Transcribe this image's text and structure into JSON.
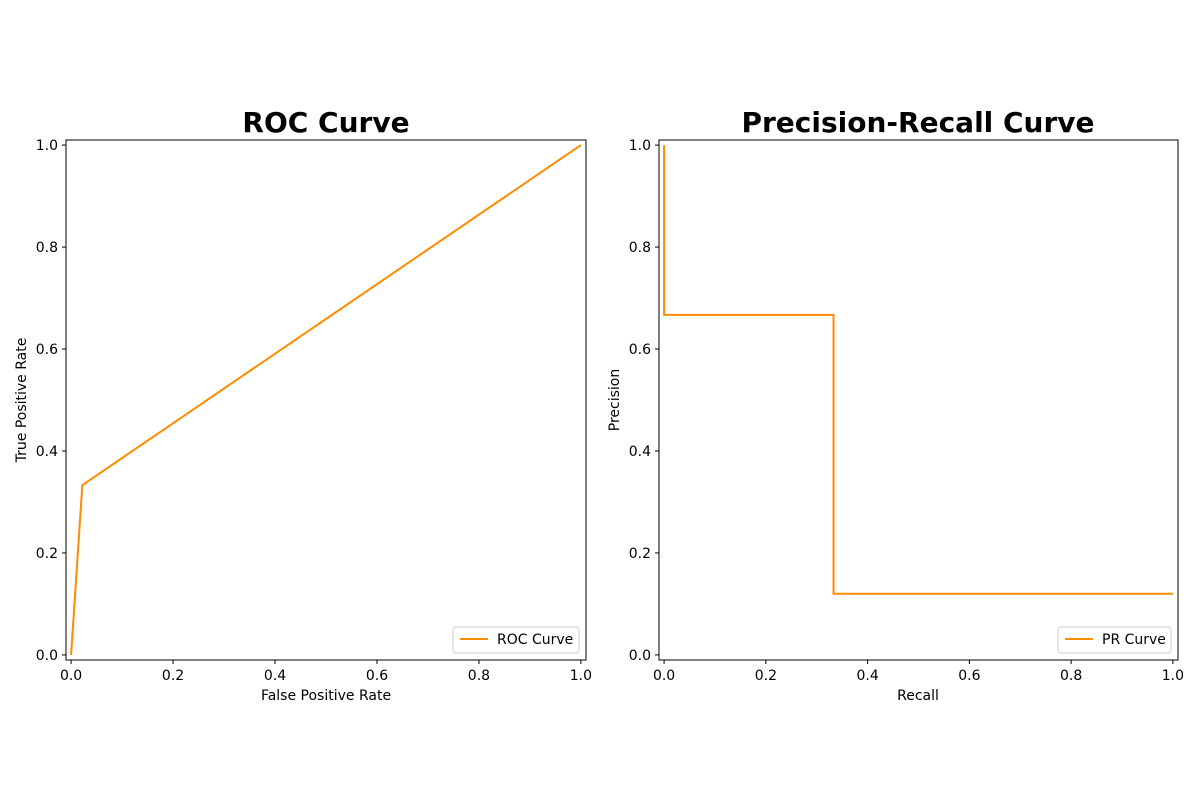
{
  "colors": {
    "line": "#ff8c00",
    "frame": "#000000",
    "legend_border": "#cccccc"
  },
  "chart_data": [
    {
      "type": "line",
      "title": "ROC Curve",
      "xlabel": "False Positive Rate",
      "ylabel": "True Positive Rate",
      "xlim": [
        -0.01,
        1.01
      ],
      "ylim": [
        -0.01,
        1.01
      ],
      "xticks": [
        "0.0",
        "0.2",
        "0.4",
        "0.6",
        "0.8",
        "1.0"
      ],
      "yticks": [
        "0.0",
        "0.2",
        "0.4",
        "0.6",
        "0.8",
        "1.0"
      ],
      "legend_position": "lower-right",
      "series": [
        {
          "name": "ROC Curve",
          "x": [
            0.0,
            0.022,
            1.0
          ],
          "y": [
            0.0,
            0.333,
            1.0
          ],
          "step": false
        }
      ]
    },
    {
      "type": "line",
      "title": "Precision-Recall Curve",
      "xlabel": "Recall",
      "ylabel": "Precision",
      "xlim": [
        -0.01,
        1.01
      ],
      "ylim": [
        -0.01,
        1.01
      ],
      "xticks": [
        "0.0",
        "0.2",
        "0.4",
        "0.6",
        "0.8",
        "1.0"
      ],
      "yticks": [
        "0.0",
        "0.2",
        "0.4",
        "0.6",
        "0.8",
        "1.0"
      ],
      "legend_position": "lower-right",
      "series": [
        {
          "name": "PR Curve",
          "x": [
            0.0,
            0.0,
            0.333,
            1.0
          ],
          "y": [
            1.0,
            0.667,
            0.12,
            0.12
          ],
          "step": true
        }
      ]
    }
  ]
}
